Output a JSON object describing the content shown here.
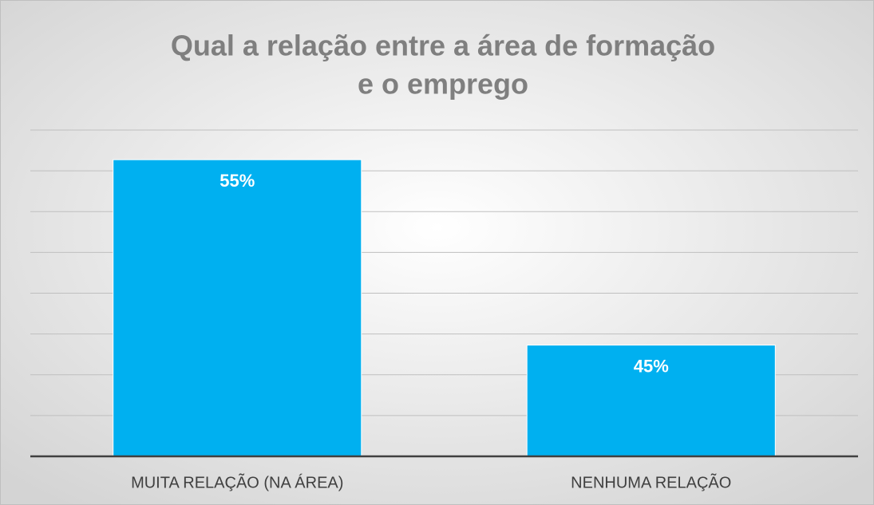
{
  "chart_data": {
    "type": "bar",
    "title": [
      "Qual a relação entre a área de formação",
      "e o emprego"
    ],
    "categories": [
      "MUITA RELAÇÃO (NA ÁREA)",
      "NENHUMA RELAÇÃO"
    ],
    "values": [
      55,
      45
    ],
    "value_labels": [
      "55%",
      "45%"
    ],
    "color": "#00b0f0",
    "ylim": [
      39,
      56.6
    ],
    "yticks": [
      39,
      41.2,
      43.4,
      45.6,
      47.8,
      50,
      52.2,
      54.4,
      56.6
    ],
    "grid": true
  }
}
